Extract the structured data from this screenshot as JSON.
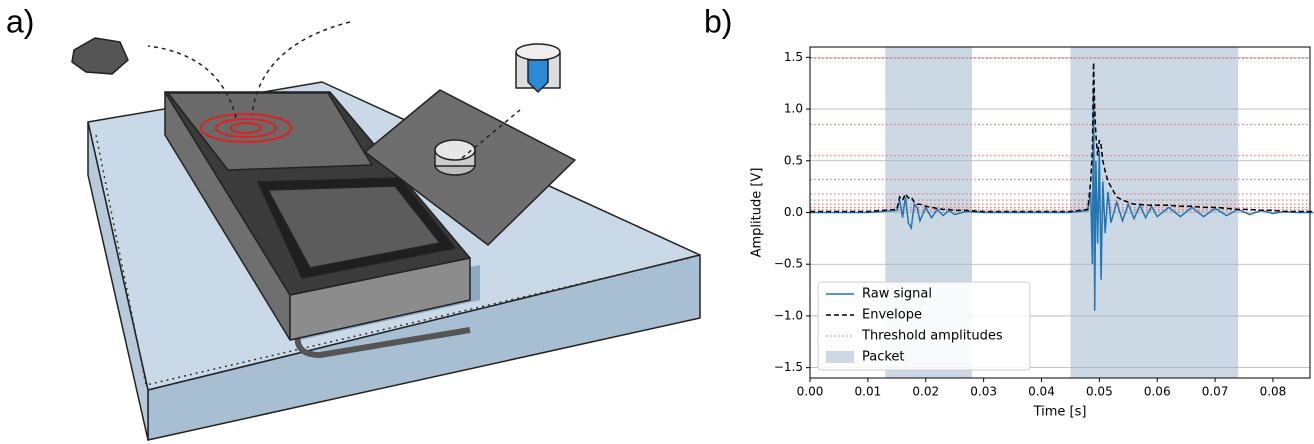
{
  "panel_labels": [
    "a)",
    "b)"
  ],
  "chart_data": {
    "type": "line",
    "xlabel": "Time [s]",
    "ylabel": "Amplitude [V]",
    "xlim": [
      0,
      0.0864
    ],
    "ylim": [
      -1.6,
      1.6
    ],
    "xticks": [
      {
        "value": 0,
        "label": "0.00"
      },
      {
        "value": 0.01,
        "label": "0.01"
      },
      {
        "value": 0.02,
        "label": "0.02"
      },
      {
        "value": 0.03,
        "label": "0.03"
      },
      {
        "value": 0.04,
        "label": "0.04"
      },
      {
        "value": 0.05,
        "label": "0.05"
      },
      {
        "value": 0.06,
        "label": "0.06"
      },
      {
        "value": 0.07,
        "label": "0.07"
      },
      {
        "value": 0.08,
        "label": "0.08"
      }
    ],
    "yticks": [
      {
        "value": -1.5,
        "label": "−1.5"
      },
      {
        "value": -1,
        "label": "−1.0"
      },
      {
        "value": -0.5,
        "label": "−0.5"
      },
      {
        "value": 0,
        "label": "0.0"
      },
      0.5,
      {
        "value": 1,
        "label": "1.0"
      },
      1.5
    ],
    "grid": true,
    "legend": "lower left",
    "x": [
      0,
      0.005,
      0.01,
      0.015,
      0.0155,
      0.016,
      0.0165,
      0.017,
      0.0175,
      0.018,
      0.0185,
      0.019,
      0.02,
      0.021,
      0.022,
      0.023,
      0.024,
      0.025,
      0.027,
      0.03,
      0.035,
      0.04,
      0.045,
      0.048,
      0.0485,
      0.0488,
      0.049,
      0.0492,
      0.0494,
      0.0497,
      0.05,
      0.0503,
      0.0506,
      0.051,
      0.0515,
      0.052,
      0.053,
      0.054,
      0.055,
      0.056,
      0.057,
      0.058,
      0.059,
      0.06,
      0.062,
      0.064,
      0.066,
      0.068,
      0.07,
      0.072,
      0.074,
      0.076,
      0.078,
      0.08,
      0.082,
      0.084,
      0.087
    ],
    "series": [
      {
        "name": "Raw signal",
        "color": "#1f77b4",
        "dash": "solid",
        "values": [
          0,
          0,
          0,
          0.02,
          0.12,
          -0.05,
          0.15,
          -0.1,
          -0.15,
          0.08,
          0.05,
          -0.08,
          0.05,
          -0.05,
          0.03,
          -0.03,
          0.02,
          -0.02,
          0.01,
          0,
          0,
          0,
          0,
          0.02,
          0.2,
          -0.5,
          1.2,
          -0.95,
          0.5,
          -0.3,
          0.6,
          -0.65,
          0.3,
          -0.2,
          0.2,
          -0.1,
          0.1,
          -0.08,
          0.08,
          -0.06,
          0.07,
          -0.05,
          0.06,
          -0.04,
          0.05,
          -0.04,
          0.05,
          -0.04,
          0.04,
          -0.03,
          0.03,
          -0.02,
          0.02,
          -0.01,
          0.01,
          0,
          0
        ]
      },
      {
        "name": "Envelope",
        "color": "#000000",
        "dash": "dashed",
        "values": [
          0.01,
          0.01,
          0.01,
          0.03,
          0.15,
          0.12,
          0.18,
          0.14,
          0.15,
          0.1,
          0.08,
          0.08,
          0.06,
          0.05,
          0.04,
          0.03,
          0.03,
          0.02,
          0.02,
          0.01,
          0.01,
          0.01,
          0.01,
          0.03,
          0.3,
          0.6,
          1.45,
          1.0,
          0.75,
          0.55,
          0.7,
          0.65,
          0.5,
          0.4,
          0.3,
          0.25,
          0.15,
          0.12,
          0.1,
          0.08,
          0.08,
          0.07,
          0.07,
          0.07,
          0.07,
          0.06,
          0.06,
          0.05,
          0.05,
          0.04,
          0.03,
          0.03,
          0.02,
          0.02,
          0.01,
          0.01,
          0.01
        ]
      }
    ],
    "thresholds": {
      "name": "Threshold amplitudes",
      "color": "#e06666",
      "values": [
        1.49,
        0.85,
        0.55,
        0.32,
        0.18,
        0.12,
        0.08,
        0.05,
        0.03,
        0.015
      ]
    },
    "packets": {
      "name": "Packet",
      "color": "#ccd9e4",
      "ranges": [
        [
          0.013,
          0.028
        ],
        [
          0.045,
          0.074
        ]
      ]
    }
  }
}
